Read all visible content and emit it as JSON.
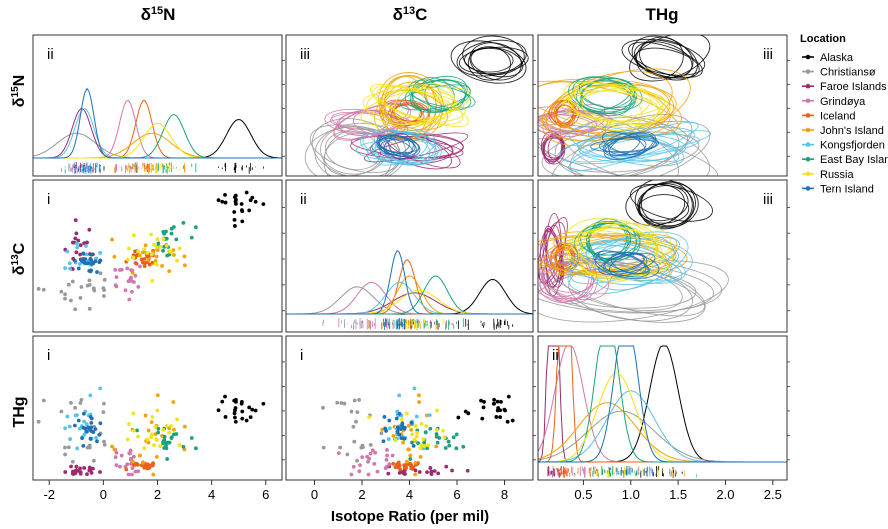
{
  "chart_data": {
    "type": "scatter",
    "description_kind": "scatterplot-matrix with density diagonal and ellipse upper panels",
    "column_titles": [
      {
        "base": "δ",
        "sup": "15",
        "rest": "N"
      },
      {
        "base": "δ",
        "sup": "13",
        "rest": "C"
      },
      {
        "base": "THg",
        "sup": "",
        "rest": ""
      }
    ],
    "row_titles": [
      {
        "base": "δ",
        "sup": "15",
        "rest": "N"
      },
      {
        "base": "δ",
        "sup": "13",
        "rest": "C"
      },
      {
        "base": "THg",
        "sup": "",
        "rest": ""
      }
    ],
    "panel_tags": [
      [
        "ii",
        "iii",
        "iii"
      ],
      [
        "i",
        "ii",
        "iii"
      ],
      [
        "i",
        "i",
        "ii"
      ]
    ],
    "xlabel": "Isotope Ratio (per mil)",
    "x_axes": [
      {
        "variable": "δ15N",
        "xlim": [
          -2.6,
          6.6
        ],
        "ticks": [
          "-2",
          "0",
          "2",
          "4",
          "6"
        ],
        "tick_values": [
          -2,
          0,
          2,
          4,
          6
        ]
      },
      {
        "variable": "δ13C",
        "xlim": [
          -1.2,
          9.2
        ],
        "ticks": [
          "0",
          "2",
          "4",
          "6",
          "8"
        ],
        "tick_values": [
          0,
          2,
          4,
          6,
          8
        ]
      },
      {
        "variable": "THg",
        "xlim": [
          0.02,
          2.65
        ],
        "ticks": [
          "0.5",
          "1.0",
          "1.5",
          "2.0",
          "2.5"
        ],
        "tick_values": [
          0.5,
          1.0,
          1.5,
          2.0,
          2.5
        ]
      }
    ],
    "grid": false,
    "legend": {
      "title": "Location",
      "placement": "right",
      "items": [
        {
          "name": "Alaska",
          "color": "#000000"
        },
        {
          "name": "Christiansø",
          "color": "#999999"
        },
        {
          "name": "Faroe Islands",
          "color": "#9c2a6e"
        },
        {
          "name": "Grindøya",
          "color": "#d277ad"
        },
        {
          "name": "Iceland",
          "color": "#e8611a"
        },
        {
          "name": "John's Island",
          "color": "#f0a30a"
        },
        {
          "name": "Kongsfjorden",
          "color": "#56c3e8"
        },
        {
          "name": "East Bay Island",
          "color": "#1aa37a"
        },
        {
          "name": "Russia",
          "color": "#f2e318"
        },
        {
          "name": "Tern Island",
          "color": "#1f6fb4"
        }
      ]
    },
    "series": [
      {
        "name": "Alaska",
        "n15_mean": 5.0,
        "n15_sd": 0.45,
        "c13_mean": 7.5,
        "c13_sd": 0.55,
        "thg_mean": 1.35,
        "thg_sd": 0.15
      },
      {
        "name": "Christiansø",
        "n15_mean": -1.0,
        "n15_sd": 0.7,
        "c13_mean": 1.8,
        "c13_sd": 0.7,
        "thg_mean": 0.9,
        "thg_sd": 0.35
      },
      {
        "name": "Faroe Islands",
        "n15_mean": -0.8,
        "n15_sd": 0.35,
        "c13_mean": 4.2,
        "c13_sd": 0.9,
        "thg_mean": 0.18,
        "thg_sd": 0.04
      },
      {
        "name": "Grindøya",
        "n15_mean": 0.9,
        "n15_sd": 0.3,
        "c13_mean": 2.4,
        "c13_sd": 0.6,
        "thg_mean": 0.35,
        "thg_sd": 0.15
      },
      {
        "name": "Iceland",
        "n15_mean": 1.5,
        "n15_sd": 0.3,
        "c13_mean": 3.9,
        "c13_sd": 0.35,
        "thg_mean": 0.3,
        "thg_sd": 0.05
      },
      {
        "name": "John's Island",
        "n15_mean": 1.8,
        "n15_sd": 0.7,
        "c13_mean": 4.0,
        "c13_sd": 0.5,
        "thg_mean": 0.75,
        "thg_sd": 0.3
      },
      {
        "name": "Kongsfjorden",
        "n15_mean": -0.7,
        "n15_sd": 0.35,
        "c13_mean": 3.6,
        "c13_sd": 0.6,
        "thg_mean": 1.0,
        "thg_sd": 0.25
      },
      {
        "name": "East Bay Island",
        "n15_mean": 2.6,
        "n15_sd": 0.4,
        "c13_mean": 5.1,
        "c13_sd": 0.5,
        "thg_mean": 0.75,
        "thg_sd": 0.12
      },
      {
        "name": "Russia",
        "n15_mean": 2.0,
        "n15_sd": 0.5,
        "c13_mean": 4.4,
        "c13_sd": 0.8,
        "thg_mean": 0.85,
        "thg_sd": 0.2
      },
      {
        "name": "Tern Island",
        "n15_mean": -0.6,
        "n15_sd": 0.25,
        "c13_mean": 3.5,
        "c13_sd": 0.3,
        "thg_mean": 0.95,
        "thg_sd": 0.12
      }
    ]
  }
}
